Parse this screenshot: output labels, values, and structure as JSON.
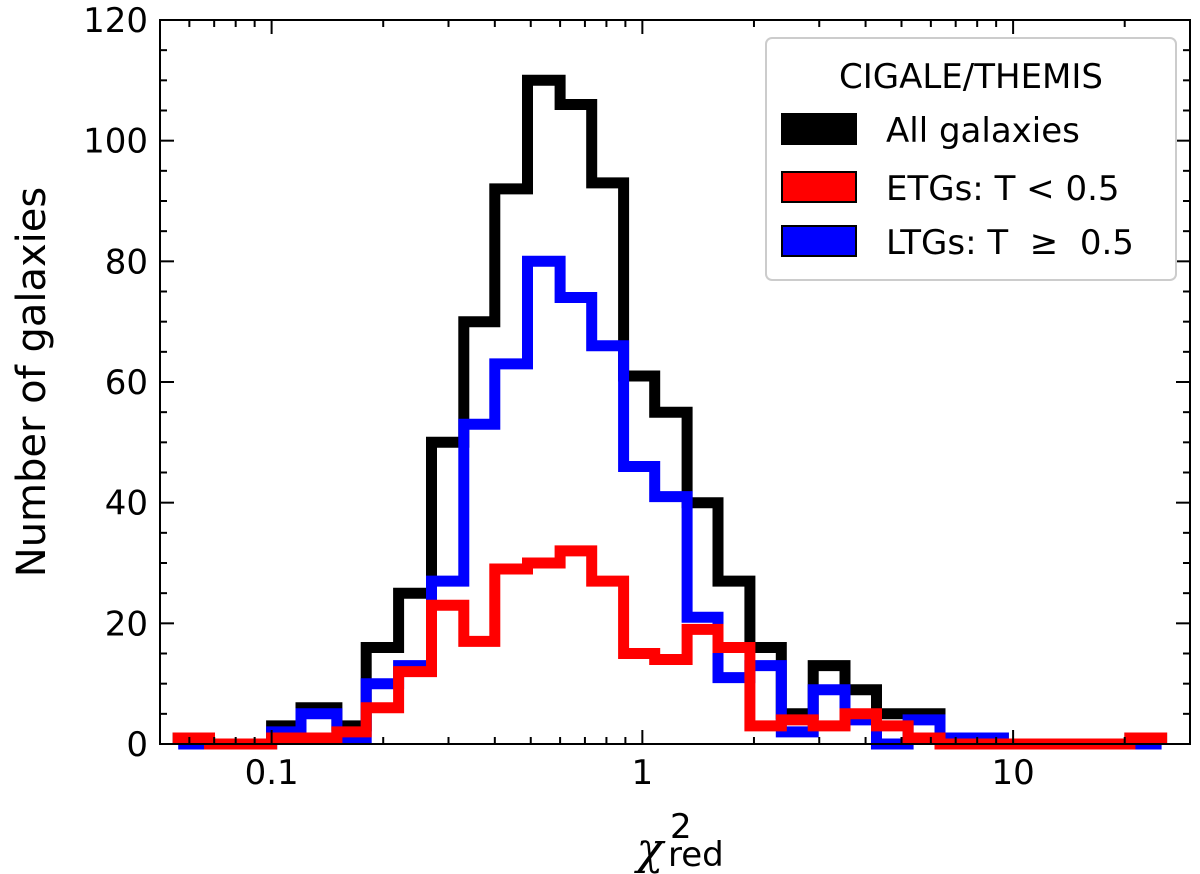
{
  "chart_data": {
    "type": "histogram",
    "xscale": "log",
    "xlim": [
      0.05,
      30
    ],
    "ylim": [
      0,
      120
    ],
    "xlabel": {
      "symbol": "χ",
      "superscript": "2",
      "subscript": "red"
    },
    "ylabel": "Number of galaxies",
    "x_ticks": [
      {
        "value": 0.1,
        "label": "0.1"
      },
      {
        "value": 1,
        "label": "1"
      },
      {
        "value": 10,
        "label": "10"
      }
    ],
    "y_ticks": [
      {
        "value": 0,
        "label": "0"
      },
      {
        "value": 20,
        "label": "20"
      },
      {
        "value": 40,
        "label": "40"
      },
      {
        "value": 60,
        "label": "60"
      },
      {
        "value": 80,
        "label": "80"
      },
      {
        "value": 100,
        "label": "100"
      },
      {
        "value": 120,
        "label": "120"
      }
    ],
    "legend": {
      "title": "CIGALE/THEMIS",
      "location": "top-right",
      "entries": [
        "All galaxies",
        "ETGs: T < 0.5",
        "LTGs: T  ≥  0.5"
      ]
    },
    "bin_edges": [
      0.056,
      0.068,
      0.082,
      0.1,
      0.12,
      0.15,
      0.18,
      0.22,
      0.27,
      0.33,
      0.4,
      0.49,
      0.6,
      0.73,
      0.89,
      1.08,
      1.32,
      1.6,
      1.95,
      2.37,
      2.89,
      3.52,
      4.28,
      5.21,
      6.35,
      7.73,
      9.41,
      11.45,
      13.94,
      16.97,
      20.66,
      25.15
    ],
    "series": [
      {
        "name": "All galaxies",
        "color": "#000000",
        "values": [
          1,
          0,
          0,
          3,
          6,
          3,
          16,
          25,
          50,
          70,
          92,
          110,
          106,
          93,
          61,
          55,
          40,
          27,
          16,
          5,
          13,
          9,
          5,
          5,
          1,
          1,
          0,
          0,
          0,
          0,
          1
        ]
      },
      {
        "name": "ETGs: T < 0.5",
        "color": "#ff0000",
        "values": [
          1,
          0,
          0,
          1,
          1,
          2,
          6,
          12,
          23,
          17,
          29,
          30,
          32,
          27,
          15,
          14,
          19,
          16,
          3,
          4,
          3,
          5,
          3,
          1,
          0,
          0,
          0,
          0,
          0,
          0,
          1
        ]
      },
      {
        "name": "LTGs: T  ≥  0.5",
        "color": "#0000ff",
        "values": [
          0,
          0,
          0,
          2,
          5,
          1,
          10,
          13,
          27,
          53,
          63,
          80,
          74,
          66,
          46,
          41,
          21,
          11,
          13,
          2,
          9,
          4,
          0,
          4,
          1,
          1,
          0,
          0,
          0,
          0,
          0
        ]
      }
    ]
  }
}
